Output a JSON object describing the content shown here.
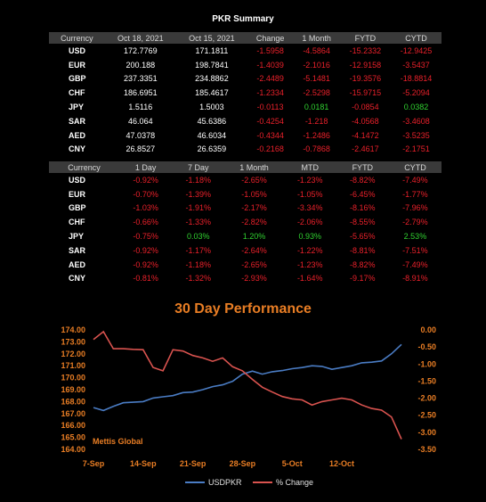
{
  "summary_title": "PKR Summary",
  "table1": {
    "headers": [
      "Currency",
      "Oct 18, 2021",
      "Oct 15, 2021",
      "Change",
      "1 Month",
      "FYTD",
      "CYTD"
    ],
    "rows": [
      {
        "cur": "USD",
        "c1": "172.7769",
        "c2": "171.1811",
        "chg": "-1.5958",
        "m1": "-4.5864",
        "fytd": "-15.2332",
        "cytd": "-12.9425"
      },
      {
        "cur": "EUR",
        "c1": "200.188",
        "c2": "198.7841",
        "chg": "-1.4039",
        "m1": "-2.1016",
        "fytd": "-12.9158",
        "cytd": "-3.5437"
      },
      {
        "cur": "GBP",
        "c1": "237.3351",
        "c2": "234.8862",
        "chg": "-2.4489",
        "m1": "-5.1481",
        "fytd": "-19.3576",
        "cytd": "-18.8814"
      },
      {
        "cur": "CHF",
        "c1": "186.6951",
        "c2": "185.4617",
        "chg": "-1.2334",
        "m1": "-2.5298",
        "fytd": "-15.9715",
        "cytd": "-5.2094"
      },
      {
        "cur": "JPY",
        "c1": "1.5116",
        "c2": "1.5003",
        "chg": "-0.0113",
        "m1": "0.0181",
        "fytd": "-0.0854",
        "cytd": "0.0382"
      },
      {
        "cur": "SAR",
        "c1": "46.064",
        "c2": "45.6386",
        "chg": "-0.4254",
        "m1": "-1.218",
        "fytd": "-4.0568",
        "cytd": "-3.4608"
      },
      {
        "cur": "AED",
        "c1": "47.0378",
        "c2": "46.6034",
        "chg": "-0.4344",
        "m1": "-1.2486",
        "fytd": "-4.1472",
        "cytd": "-3.5235"
      },
      {
        "cur": "CNY",
        "c1": "26.8527",
        "c2": "26.6359",
        "chg": "-0.2168",
        "m1": "-0.7868",
        "fytd": "-2.4617",
        "cytd": "-2.1751"
      }
    ]
  },
  "table2": {
    "headers": [
      "Currency",
      "1 Day",
      "7 Day",
      "1 Month",
      "MTD",
      "FYTD",
      "CYTD"
    ],
    "rows": [
      {
        "cur": "USD",
        "d1": "-0.92%",
        "d7": "-1.18%",
        "m1": "-2.65%",
        "mtd": "-1.23%",
        "fytd": "-8.82%",
        "cytd": "-7.49%"
      },
      {
        "cur": "EUR",
        "d1": "-0.70%",
        "d7": "-1.39%",
        "m1": "-1.05%",
        "mtd": "-1.05%",
        "fytd": "-6.45%",
        "cytd": "-1.77%"
      },
      {
        "cur": "GBP",
        "d1": "-1.03%",
        "d7": "-1.91%",
        "m1": "-2.17%",
        "mtd": "-3.34%",
        "fytd": "-8.16%",
        "cytd": "-7.96%"
      },
      {
        "cur": "CHF",
        "d1": "-0.66%",
        "d7": "-1.33%",
        "m1": "-2.82%",
        "mtd": "-2.06%",
        "fytd": "-8.55%",
        "cytd": "-2.79%"
      },
      {
        "cur": "JPY",
        "d1": "-0.75%",
        "d7": "0.03%",
        "m1": "1.20%",
        "mtd": "0.93%",
        "fytd": "-5.65%",
        "cytd": "2.53%"
      },
      {
        "cur": "SAR",
        "d1": "-0.92%",
        "d7": "-1.17%",
        "m1": "-2.64%",
        "mtd": "-1.22%",
        "fytd": "-8.81%",
        "cytd": "-7.51%"
      },
      {
        "cur": "AED",
        "d1": "-0.92%",
        "d7": "-1.18%",
        "m1": "-2.65%",
        "mtd": "-1.23%",
        "fytd": "-8.82%",
        "cytd": "-7.49%"
      },
      {
        "cur": "CNY",
        "d1": "-0.81%",
        "d7": "-1.32%",
        "m1": "-2.93%",
        "mtd": "-1.64%",
        "fytd": "-9.17%",
        "cytd": "-8.91%"
      }
    ]
  },
  "chart_data": {
    "type": "line",
    "title": "30 Day Performance",
    "watermark": "Mettis Global",
    "x_tick_labels": [
      "7-Sep",
      "14-Sep",
      "21-Sep",
      "28-Sep",
      "5-Oct",
      "12-Oct"
    ],
    "x_tick_index": [
      0,
      5,
      10,
      15,
      20,
      25
    ],
    "y_left_ticks": [
      "174.00",
      "173.00",
      "172.00",
      "171.00",
      "170.00",
      "169.00",
      "168.00",
      "167.00",
      "166.00",
      "165.00",
      "164.00"
    ],
    "y_right_ticks": [
      "0.00",
      "-0.50",
      "-1.00",
      "-1.50",
      "-2.00",
      "-2.50",
      "-3.00",
      "-3.50"
    ],
    "y_left_range": [
      164,
      174
    ],
    "y_right_range": [
      -3.5,
      0
    ],
    "grid": false,
    "legend_position": "bottom",
    "series": [
      {
        "name": "USDPKR",
        "axis": "left",
        "color": "#4a7cc4",
        "values": [
          167.5,
          167.25,
          167.6,
          167.9,
          167.95,
          168.0,
          168.3,
          168.4,
          168.5,
          168.75,
          168.8,
          169.0,
          169.25,
          169.4,
          169.7,
          170.3,
          170.55,
          170.3,
          170.5,
          170.6,
          170.75,
          170.85,
          171.0,
          170.95,
          170.7,
          170.85,
          171.0,
          171.25,
          171.3,
          171.4,
          172.0,
          172.78
        ]
      },
      {
        "name": "% Change",
        "axis": "right",
        "color": "#d9534f",
        "values": [
          -0.28,
          -0.05,
          -0.55,
          -0.55,
          -0.57,
          -0.58,
          -1.1,
          -1.2,
          -0.58,
          -0.62,
          -0.75,
          -0.82,
          -0.92,
          -0.82,
          -1.08,
          -1.2,
          -1.45,
          -1.68,
          -1.82,
          -1.95,
          -2.02,
          -2.05,
          -2.2,
          -2.1,
          -2.05,
          -2.0,
          -2.05,
          -2.2,
          -2.3,
          -2.35,
          -2.55,
          -3.2
        ]
      }
    ]
  }
}
